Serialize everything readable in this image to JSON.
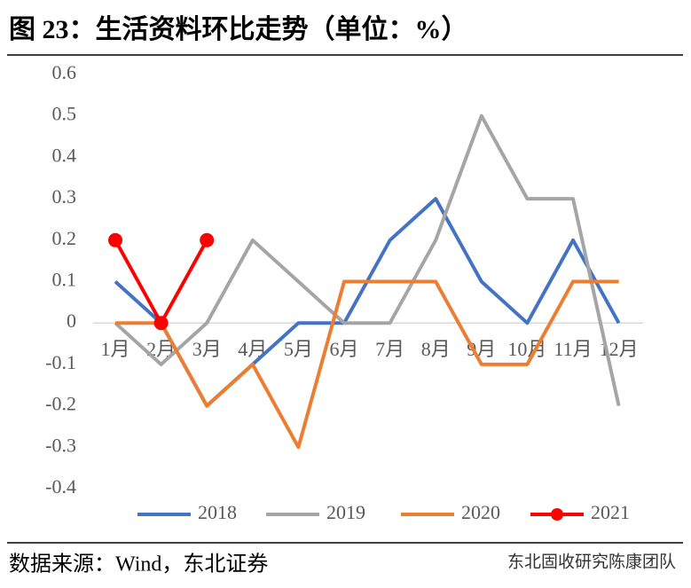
{
  "chart_data": {
    "type": "line",
    "title": "图 23：生活资料环比走势（单位：%）",
    "categories": [
      "1月",
      "2月",
      "3月",
      "4月",
      "5月",
      "6月",
      "7月",
      "8月",
      "9月",
      "10月",
      "11月",
      "12月"
    ],
    "series": [
      {
        "name": "2018",
        "color": "#4472c4",
        "values": [
          0.1,
          0,
          -0.2,
          -0.1,
          0,
          0,
          0.2,
          0.3,
          0.1,
          0,
          0.2,
          0
        ]
      },
      {
        "name": "2019",
        "color": "#a5a5a5",
        "values": [
          0,
          -0.1,
          0,
          0.2,
          0.1,
          0,
          0,
          0.2,
          0.5,
          0.3,
          0.3,
          -0.2
        ]
      },
      {
        "name": "2020",
        "color": "#ed7d31",
        "values": [
          0,
          0,
          -0.2,
          -0.1,
          -0.3,
          0.1,
          0.1,
          0.1,
          -0.1,
          -0.1,
          0.1,
          0.1
        ]
      },
      {
        "name": "2021",
        "color": "#ff0000",
        "markers": true,
        "values": [
          0.2,
          0,
          0.2,
          null,
          null,
          null,
          null,
          null,
          null,
          null,
          null,
          null
        ]
      }
    ],
    "ylim": [
      -0.4,
      0.6
    ],
    "yticks": [
      -0.4,
      -0.3,
      -0.2,
      -0.1,
      0,
      0.1,
      0.2,
      0.3,
      0.4,
      0.5,
      0.6
    ],
    "grid": false,
    "legend": "bottom",
    "source": "数据来源：Wind，东北证券",
    "watermark": "东北固收研究陈康团队"
  }
}
